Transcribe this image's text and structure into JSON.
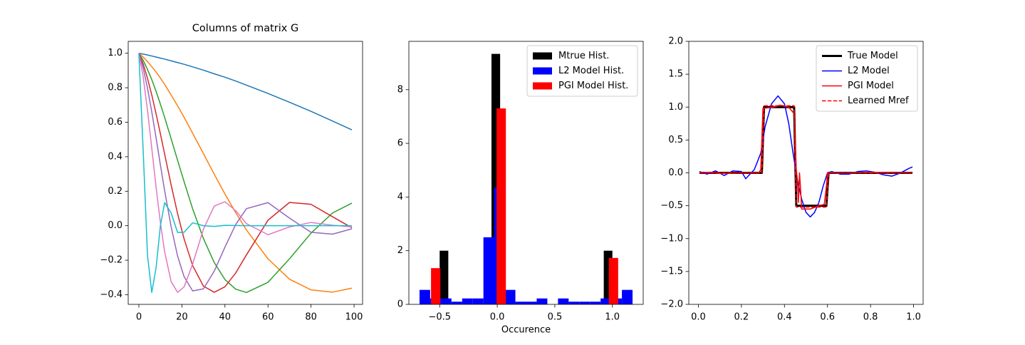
{
  "chart_data": [
    {
      "type": "line",
      "title": "Columns of matrix G",
      "x": [
        0,
        2,
        4,
        6,
        8,
        10,
        12,
        15,
        18,
        21,
        25,
        30,
        35,
        40,
        45,
        50,
        60,
        70,
        80,
        90,
        99
      ],
      "xlim": [
        -4.95,
        103.95
      ],
      "ylim": [
        -0.456,
        1.069
      ],
      "xticks": [
        0,
        20,
        40,
        60,
        80,
        100
      ],
      "yticks": [
        {
          "value": -0.4,
          "label": "−0.4"
        },
        {
          "value": -0.2,
          "label": "−0.2"
        },
        {
          "value": 0,
          "label": "0.0"
        },
        0.2,
        0.4,
        0.6,
        0.8,
        {
          "value": 1,
          "label": "1.0"
        }
      ],
      "series": [
        {
          "color": "#1f77b4",
          "values": [
            1,
            0.995,
            0.99,
            0.984,
            0.978,
            0.972,
            0.966,
            0.956,
            0.946,
            0.936,
            0.921,
            0.902,
            0.881,
            0.861,
            0.839,
            0.815,
            0.767,
            0.716,
            0.663,
            0.607,
            0.556
          ]
        },
        {
          "color": "#ff7f0e",
          "values": [
            1,
            0.978,
            0.952,
            0.922,
            0.891,
            0.856,
            0.819,
            0.758,
            0.695,
            0.629,
            0.536,
            0.418,
            0.299,
            0.184,
            0.076,
            -0.025,
            -0.192,
            -0.31,
            -0.372,
            -0.385,
            -0.362
          ]
        },
        {
          "color": "#2ca02c",
          "values": [
            1,
            0.959,
            0.906,
            0.847,
            0.779,
            0.705,
            0.627,
            0.504,
            0.379,
            0.256,
            0.098,
            -0.074,
            -0.213,
            -0.312,
            -0.368,
            -0.387,
            -0.328,
            -0.192,
            -0.043,
            0.074,
            0.131
          ]
        },
        {
          "color": "#d62728",
          "values": [
            1,
            0.938,
            0.855,
            0.758,
            0.649,
            0.533,
            0.414,
            0.236,
            0.07,
            -0.076,
            -0.231,
            -0.35,
            -0.386,
            -0.354,
            -0.274,
            -0.169,
            0.032,
            0.135,
            0.124,
            0.052,
            -0.012
          ]
        },
        {
          "color": "#9467bd",
          "values": [
            1,
            0.914,
            0.798,
            0.66,
            0.509,
            0.353,
            0.201,
            -0.006,
            -0.176,
            -0.295,
            -0.378,
            -0.366,
            -0.264,
            -0.124,
            0.007,
            0.099,
            0.134,
            0.044,
            -0.038,
            -0.049,
            -0.018
          ]
        },
        {
          "color": "#e377c2",
          "values": [
            1,
            0.863,
            0.671,
            0.449,
            0.223,
            0.018,
            -0.153,
            -0.324,
            -0.386,
            -0.355,
            -0.222,
            -0.02,
            0.114,
            0.139,
            0.087,
            0.012,
            -0.052,
            -0.007,
            0.019,
            0.003,
            -0.007
          ]
        },
        {
          "color": "#17becf",
          "values": [
            1,
            0.436,
            -0.17,
            -0.387,
            -0.244,
            0,
            0.134,
            0.074,
            -0.039,
            -0.038,
            0.017,
            0,
            -0.004,
            0.002,
            0.001,
            0,
            0,
            0,
            0,
            0,
            0
          ]
        }
      ]
    },
    {
      "type": "histogram",
      "xlabel": "Occurence",
      "xlim": [
        -0.7675,
        1.2675
      ],
      "ylim": [
        0,
        9.8
      ],
      "xticks": [
        {
          "value": -0.5,
          "label": "−0.5"
        },
        {
          "value": 0,
          "label": "0.0"
        },
        0.5,
        {
          "value": 1,
          "label": "1.0"
        }
      ],
      "yticks": [
        0,
        2,
        4,
        6,
        8
      ],
      "legend": "upper right",
      "series": [
        {
          "name": "Mtrue Hist.",
          "color": "#000000",
          "bins": [
            -0.5,
            -0.425,
            -0.35,
            -0.275,
            -0.2,
            -0.125,
            -0.05,
            0.025,
            0.1,
            0.175,
            0.25,
            0.325,
            0.4,
            0.475,
            0.55,
            0.625,
            0.7,
            0.775,
            0.85,
            0.925,
            1.0
          ],
          "values": [
            2,
            0,
            0,
            0,
            0,
            0,
            9.333,
            0,
            0,
            0,
            0,
            0,
            0,
            0,
            0,
            0,
            0,
            0,
            0,
            2
          ]
        },
        {
          "name": "L2 Model Hist.",
          "color": "#0000ff",
          "bins": [
            -0.675,
            -0.5825,
            -0.49,
            -0.3975,
            -0.305,
            -0.2125,
            -0.12,
            -0.0275,
            0.065,
            0.1575,
            0.25,
            0.3425,
            0.435,
            0.5275,
            0.62,
            0.7125,
            0.805,
            0.8975,
            0.99,
            1.0825,
            1.175
          ],
          "values": [
            0.54,
            0.22,
            0.22,
            0.1,
            0.22,
            0.22,
            2.5,
            4.35,
            0.54,
            0.1,
            0.1,
            0.22,
            0,
            0.22,
            0.1,
            0.1,
            0.1,
            0.22,
            0.22,
            0.54
          ]
        },
        {
          "name": "PGI Model Hist.",
          "color": "#ff0000",
          "bins": [
            -0.575,
            -0.49375,
            -0.4125,
            -0.33125,
            -0.25,
            -0.16875,
            -0.0875,
            -0.00625,
            0.075,
            0.15625,
            0.2375,
            0.31875,
            0.4,
            0.48125,
            0.5625,
            0.64375,
            0.725,
            0.80625,
            0.8875,
            0.96875,
            1.05
          ],
          "values": [
            1.35,
            0,
            0,
            0,
            0,
            0,
            0,
            7.3,
            0,
            0,
            0,
            0,
            0,
            0,
            0,
            0,
            0,
            0,
            0,
            1.73
          ]
        }
      ]
    },
    {
      "type": "line",
      "xlim": [
        -0.0445,
        1.0445
      ],
      "ylim": [
        -2,
        2
      ],
      "xticks": [
        {
          "value": 0,
          "label": "0.0"
        },
        0.2,
        0.4,
        0.6,
        0.8,
        {
          "value": 1,
          "label": "1.0"
        }
      ],
      "yticks": [
        {
          "value": -2,
          "label": "−2.0"
        },
        {
          "value": -1.5,
          "label": "−1.5"
        },
        {
          "value": -1,
          "label": "−1.0"
        },
        {
          "value": -0.5,
          "label": "−0.5"
        },
        {
          "value": 0,
          "label": "0.0"
        },
        0.5,
        {
          "value": 1,
          "label": "1.0"
        },
        1.5,
        {
          "value": 2,
          "label": "2.0"
        }
      ],
      "legend": "upper right",
      "series": [
        {
          "name": "True Model",
          "color": "#000000",
          "linewidth": 3,
          "x": [
            0.005,
            0.295,
            0.305,
            0.445,
            0.455,
            0.595,
            0.605,
            0.995
          ],
          "values": [
            0,
            0,
            1,
            1,
            -0.5,
            -0.5,
            0,
            0
          ]
        },
        {
          "name": "L2 Model",
          "color": "#0000ff",
          "linewidth": 1.5,
          "x": [
            0.005,
            0.04,
            0.08,
            0.12,
            0.16,
            0.2,
            0.22,
            0.26,
            0.29,
            0.31,
            0.34,
            0.37,
            0.4,
            0.42,
            0.44,
            0.46,
            0.48,
            0.5,
            0.52,
            0.54,
            0.56,
            0.58,
            0.6,
            0.62,
            0.66,
            0.7,
            0.74,
            0.78,
            0.82,
            0.86,
            0.9,
            0.94,
            0.98,
            0.995
          ],
          "values": [
            0.02,
            -0.02,
            0.03,
            -0.04,
            0.03,
            0.02,
            -0.09,
            0.05,
            0.3,
            0.7,
            1.05,
            1.17,
            1.05,
            0.75,
            0.3,
            -0.1,
            -0.4,
            -0.6,
            -0.67,
            -0.6,
            -0.45,
            -0.2,
            0,
            0.02,
            -0.02,
            -0.02,
            0.02,
            0.03,
            0.01,
            -0.03,
            -0.05,
            0,
            0.07,
            0.09
          ]
        },
        {
          "name": "PGI Model",
          "color": "#ff0000",
          "linewidth": 1.5,
          "x": [
            0.005,
            0.05,
            0.1,
            0.2,
            0.28,
            0.29,
            0.3,
            0.35,
            0.38,
            0.42,
            0.445,
            0.455,
            0.46,
            0.465,
            0.47,
            0.475,
            0.48,
            0.52,
            0.56,
            0.585,
            0.595,
            0.6,
            0.7,
            0.8,
            0.995
          ],
          "values": [
            0,
            0.01,
            -0.01,
            0,
            0,
            0.05,
            0.98,
            1,
            1.03,
            1,
            0.9,
            0.05,
            -0.1,
            -0.45,
            0,
            -0.25,
            -0.55,
            -0.55,
            -0.5,
            -0.48,
            -0.2,
            0,
            0,
            0.01,
            0
          ]
        },
        {
          "name": "Learned Mref",
          "color": "#ff0000",
          "linewidth": 1.5,
          "linestyle": "--",
          "x": [
            0.005,
            0.295,
            0.305,
            0.445,
            0.455,
            0.595,
            0.605,
            0.995
          ],
          "values": [
            0,
            0,
            1.02,
            1.02,
            -0.52,
            -0.52,
            0,
            0
          ]
        }
      ]
    }
  ]
}
